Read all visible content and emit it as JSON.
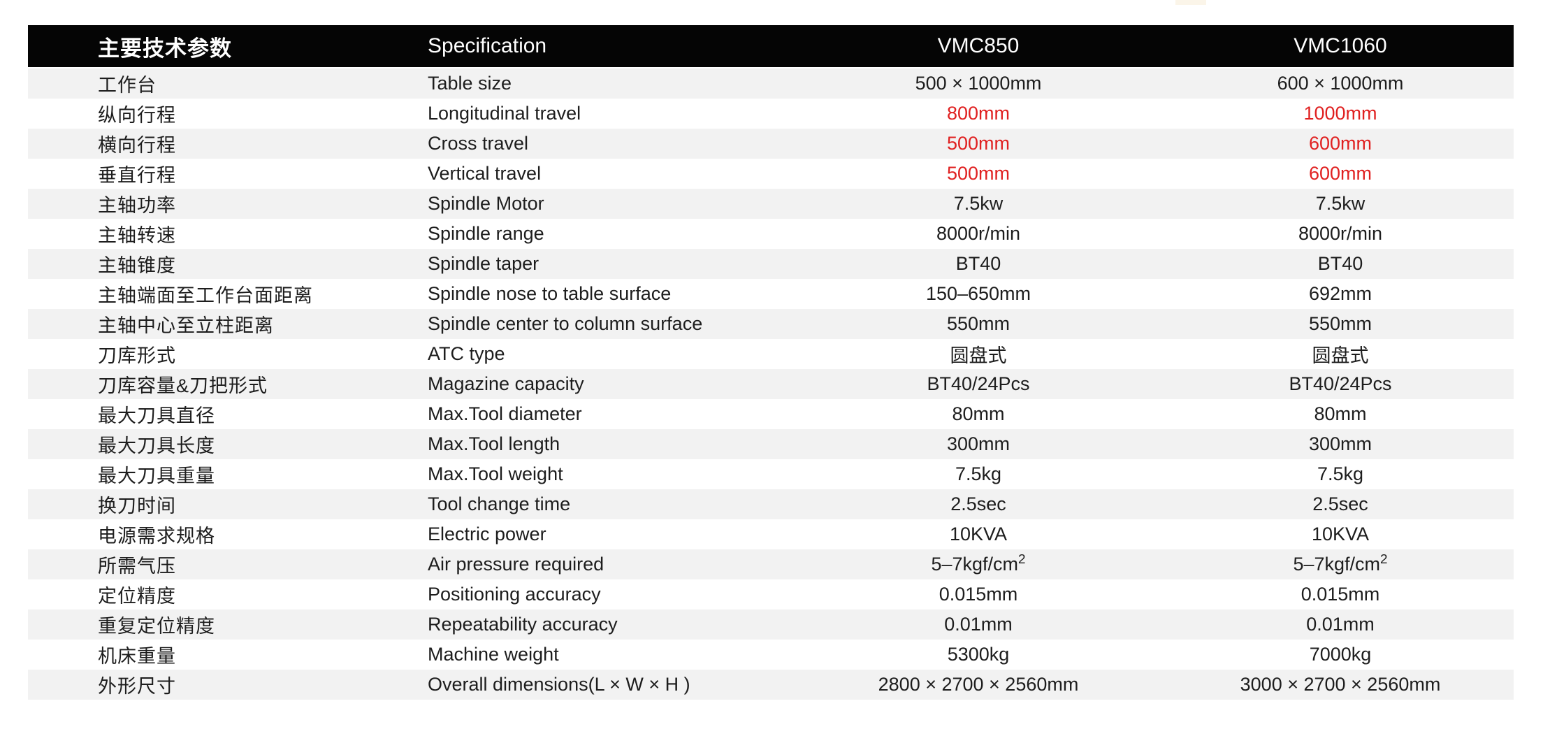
{
  "page": {
    "background": "#ffffff"
  },
  "colors": {
    "header_bg": "#050505",
    "header_text": "#ffffff",
    "row_alt_bg": "#f2f2f2",
    "row_bg": "#ffffff",
    "body_text": "#1d1d1d",
    "highlight_red": "#e02020"
  },
  "table": {
    "columns": [
      {
        "label": "主要技术参数"
      },
      {
        "label": "Specification"
      },
      {
        "label": "VMC850"
      },
      {
        "label": "VMC1060"
      }
    ],
    "rows": [
      {
        "cn": "工作台",
        "en": "Table size",
        "v850": "500 × 1000mm",
        "v1060": "600 × 1000mm",
        "red": false
      },
      {
        "cn": "纵向行程",
        "en": "Longitudinal travel",
        "v850": "800mm",
        "v1060": "1000mm",
        "red": true
      },
      {
        "cn": "横向行程",
        "en": "Cross travel",
        "v850": "500mm",
        "v1060": "600mm",
        "red": true
      },
      {
        "cn": "垂直行程",
        "en": "Vertical travel",
        "v850": "500mm",
        "v1060": "600mm",
        "red": true
      },
      {
        "cn": "主轴功率",
        "en": "Spindle Motor",
        "v850": "7.5kw",
        "v1060": "7.5kw",
        "red": false
      },
      {
        "cn": "主轴转速",
        "en": "Spindle range",
        "v850": "8000r/min",
        "v1060": "8000r/min",
        "red": false
      },
      {
        "cn": "主轴锥度",
        "en": "Spindle taper",
        "v850": "BT40",
        "v1060": "BT40",
        "red": false
      },
      {
        "cn": "主轴端面至工作台面距离",
        "en": "Spindle nose to table surface",
        "v850": "150–650mm",
        "v1060": "692mm",
        "red": false
      },
      {
        "cn": "主轴中心至立柱距离",
        "en": "Spindle center to column surface",
        "v850": "550mm",
        "v1060": "550mm",
        "red": false
      },
      {
        "cn": "刀库形式",
        "en": "ATC type",
        "v850": "圆盘式",
        "v1060": "圆盘式",
        "red": false
      },
      {
        "cn": "刀库容量&刀把形式",
        "en": "Magazine capacity",
        "v850": "BT40/24Pcs",
        "v1060": "BT40/24Pcs",
        "red": false
      },
      {
        "cn": "最大刀具直径",
        "en": "Max.Tool diameter",
        "v850": "80mm",
        "v1060": "80mm",
        "red": false
      },
      {
        "cn": "最大刀具长度",
        "en": "Max.Tool length",
        "v850": "300mm",
        "v1060": "300mm",
        "red": false
      },
      {
        "cn": "最大刀具重量",
        "en": "Max.Tool weight",
        "v850": "7.5kg",
        "v1060": "7.5kg",
        "red": false
      },
      {
        "cn": "换刀时间",
        "en": "Tool change time",
        "v850": "2.5sec",
        "v1060": "2.5sec",
        "red": false
      },
      {
        "cn": "电源需求规格",
        "en": "Electric power",
        "v850": "10KVA",
        "v1060": "10KVA",
        "red": false
      },
      {
        "cn": "所需气压",
        "en": "Air pressure required",
        "v850": "5–7kgf/cm",
        "v850_sup": "2",
        "v1060": "5–7kgf/cm",
        "v1060_sup": "2",
        "red": false
      },
      {
        "cn": "定位精度",
        "en": "Positioning accuracy",
        "v850": "0.015mm",
        "v1060": "0.015mm",
        "red": false
      },
      {
        "cn": "重复定位精度",
        "en": "Repeatability accuracy",
        "v850": "0.01mm",
        "v1060": "0.01mm",
        "red": false
      },
      {
        "cn": "机床重量",
        "en": "Machine weight",
        "v850": "5300kg",
        "v1060": "7000kg",
        "red": false
      },
      {
        "cn": "外形尺寸",
        "en": "Overall dimensions(L × W × H )",
        "v850": "2800 × 2700 × 2560mm",
        "v1060": "3000 × 2700 × 2560mm",
        "red": false
      }
    ]
  }
}
